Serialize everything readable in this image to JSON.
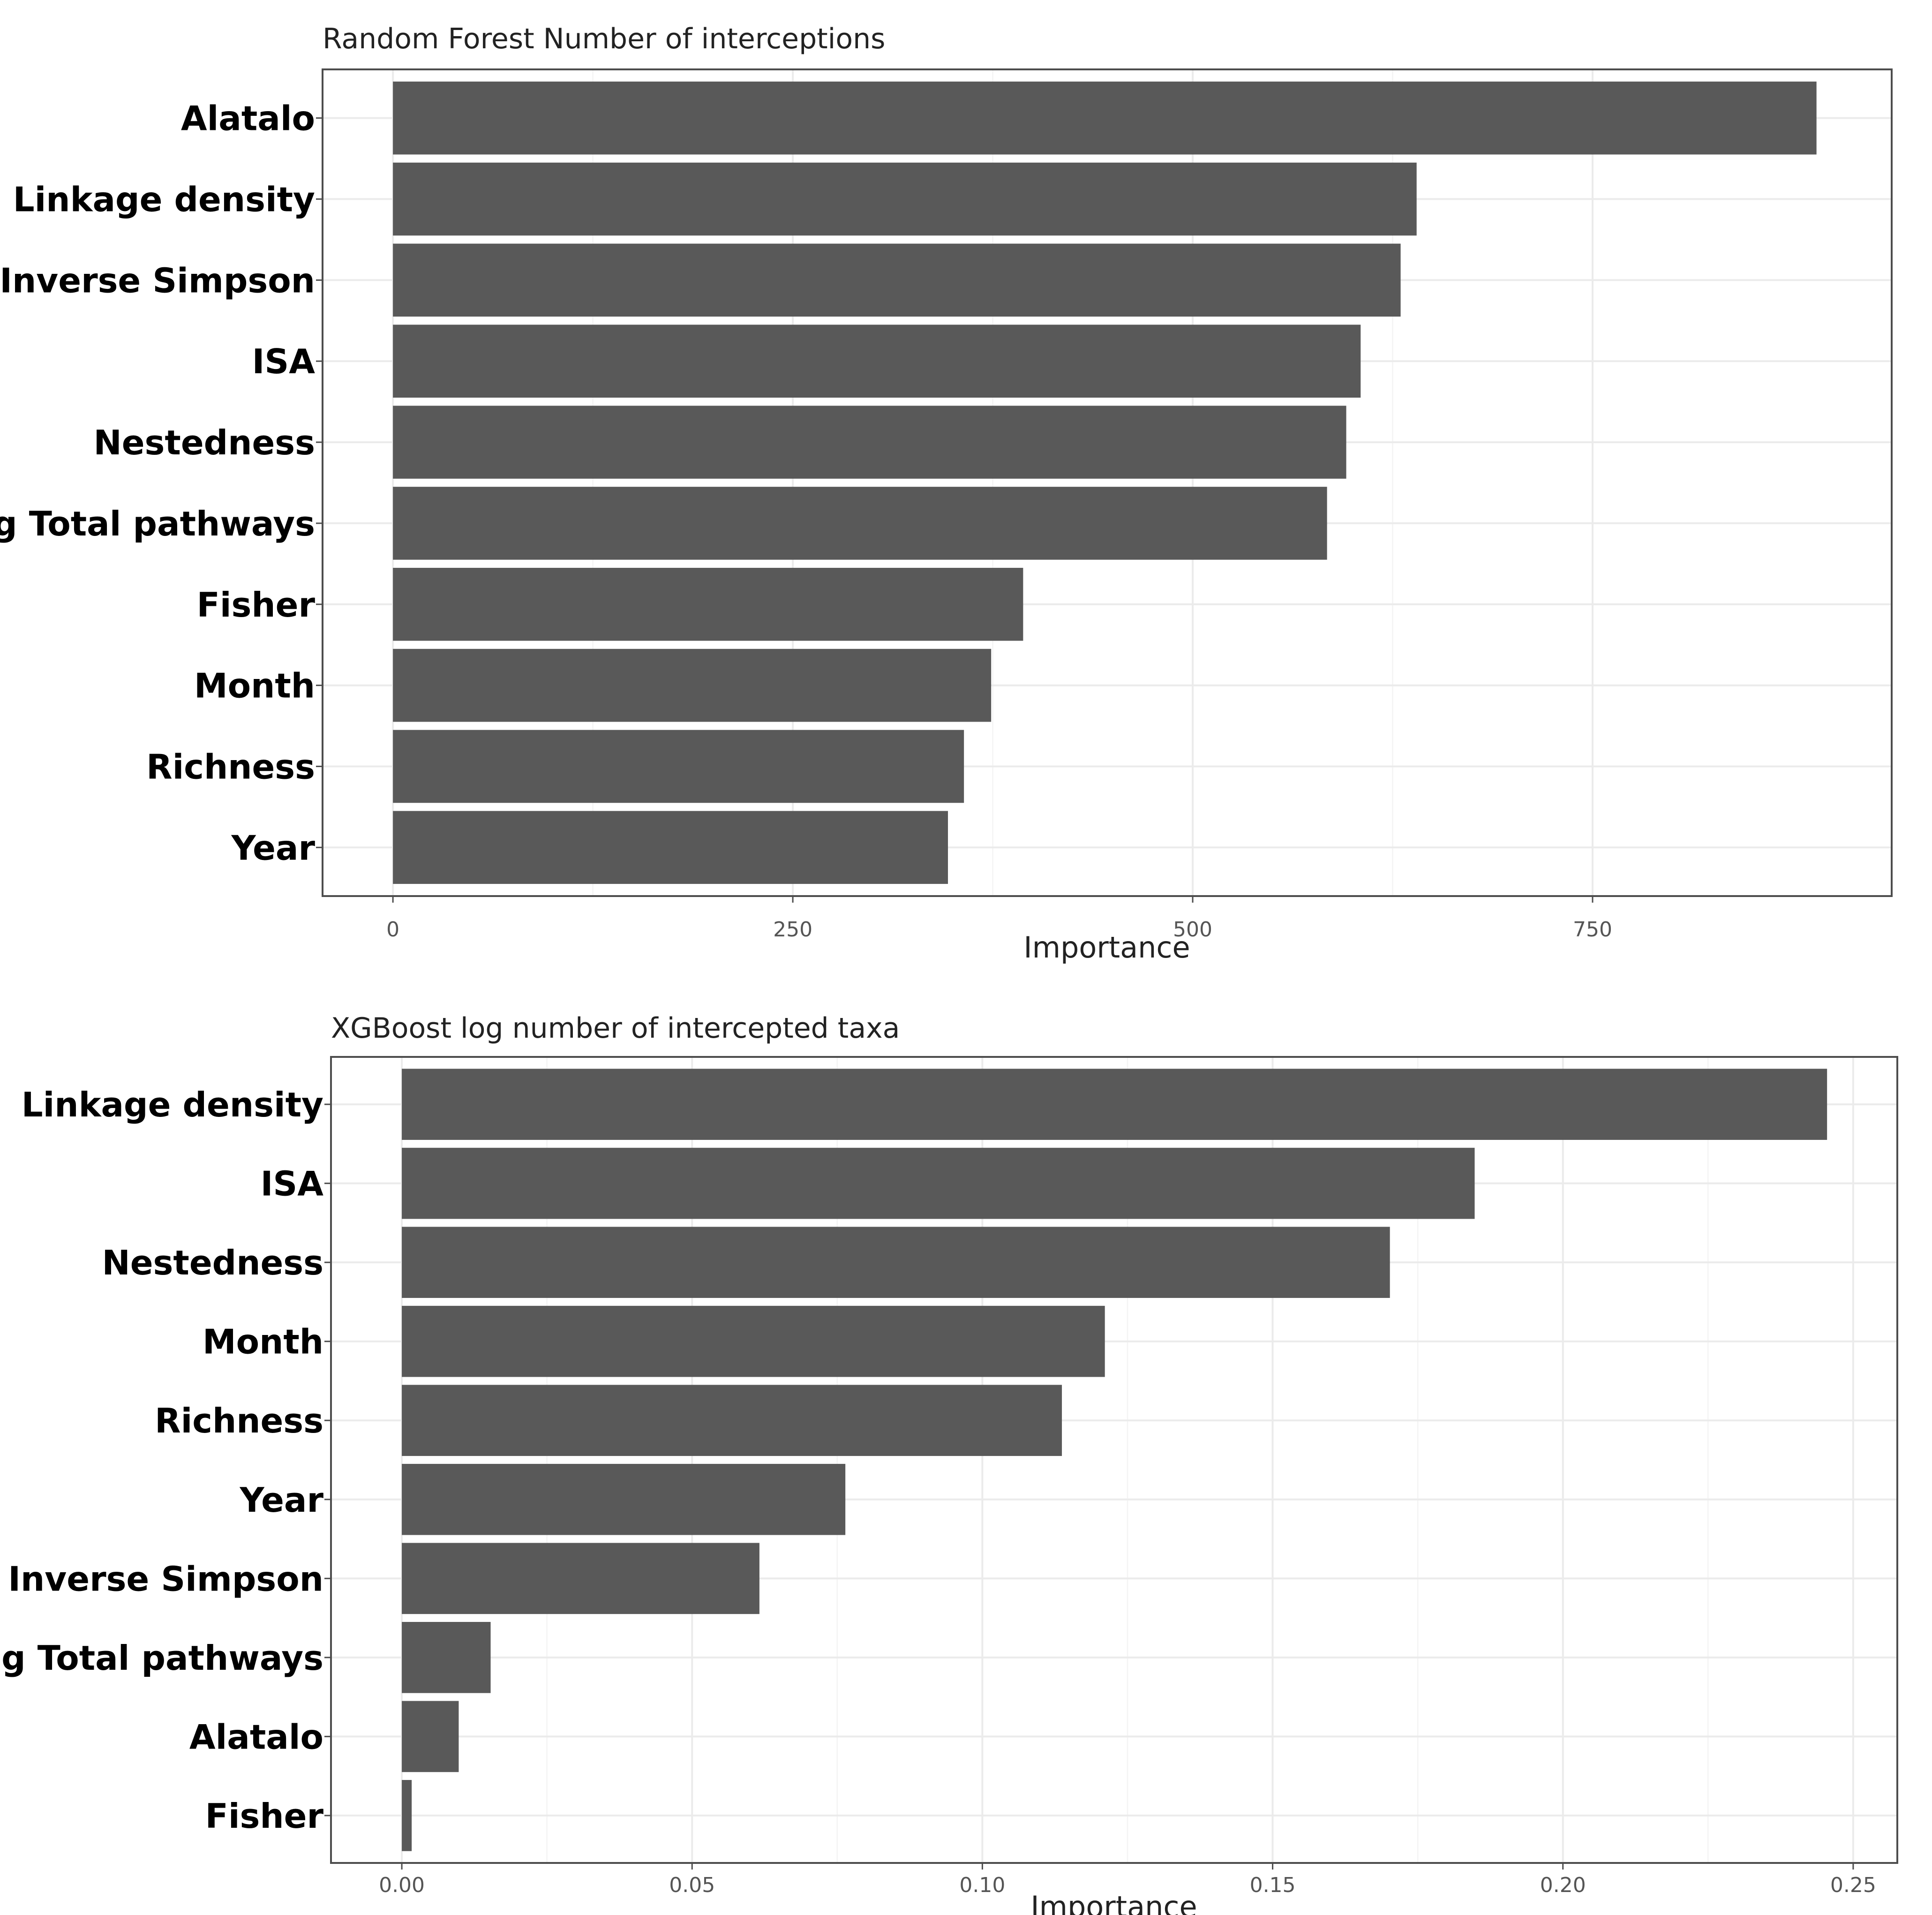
{
  "chart_data": [
    {
      "type": "bar",
      "orientation": "horizontal",
      "title": "Random Forest Number of interceptions",
      "xlabel": "Importance",
      "ylabel": "",
      "categories": [
        "Alatalo",
        "Linkage density",
        "Inverse Simpson",
        "ISA",
        "Nestedness",
        "log Total pathways",
        "Fisher",
        "Month",
        "Richness",
        "Year"
      ],
      "values": [
        890,
        640,
        630,
        605,
        596,
        584,
        394,
        374,
        357,
        347
      ],
      "xlim": [
        -44,
        937
      ],
      "xticks": [
        0,
        250,
        500,
        750
      ],
      "xtick_labels": [
        "0",
        "250",
        "500",
        "750"
      ],
      "grid": true,
      "legend": "none"
    },
    {
      "type": "bar",
      "orientation": "horizontal",
      "title": "XGBoost log number of intercepted taxa",
      "xlabel": "Importance",
      "ylabel": "",
      "categories": [
        "Linkage density",
        "ISA",
        "Nestedness",
        "Month",
        "Richness",
        "Year",
        "Inverse Simpson",
        "log Total pathways",
        "Alatalo",
        "Fisher"
      ],
      "values": [
        0.2455,
        0.1848,
        0.1702,
        0.1211,
        0.1137,
        0.0764,
        0.0616,
        0.0153,
        0.0098,
        0.0017
      ],
      "xlim": [
        -0.0122,
        0.2576
      ],
      "xticks": [
        0.0,
        0.05,
        0.1,
        0.15,
        0.2,
        0.25
      ],
      "xtick_labels": [
        "0.00",
        "0.05",
        "0.10",
        "0.15",
        "0.20",
        "0.25"
      ],
      "grid": true,
      "legend": "none"
    }
  ]
}
